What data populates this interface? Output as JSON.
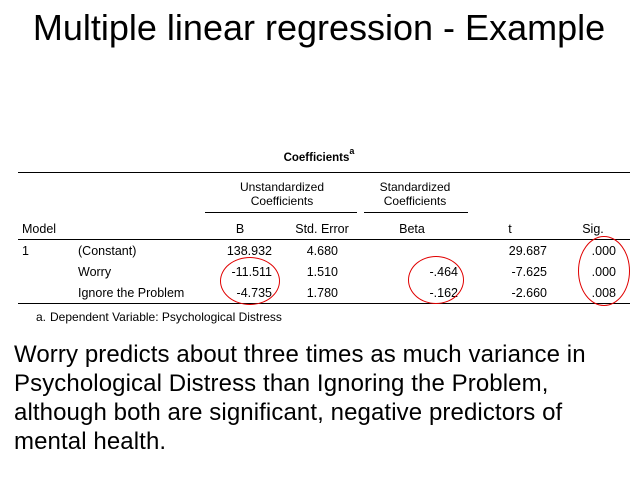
{
  "title": "Multiple linear regression - Example",
  "table": {
    "caption": "Coefficients",
    "caption_superscript": "a",
    "group_headers": {
      "unstandardized": "Unstandardized Coefficients",
      "standardized": "Standardized Coefficients"
    },
    "columns": [
      "Model",
      "",
      "B",
      "Std. Error",
      "Beta",
      "t",
      "Sig."
    ],
    "rows": [
      {
        "model": "1",
        "predictor": "(Constant)",
        "b": "138.932",
        "se": "4.680",
        "beta": "",
        "t": "29.687",
        "sig": ".000"
      },
      {
        "model": "",
        "predictor": "Worry",
        "b": "-11.511",
        "se": "1.510",
        "beta": "-.464",
        "t": "-7.625",
        "sig": ".000"
      },
      {
        "model": "",
        "predictor": "Ignore the Problem",
        "b": "-4.735",
        "se": "1.780",
        "beta": "-.162",
        "t": "-2.660",
        "sig": ".008"
      }
    ],
    "footnote_marker": "a.",
    "footnote": "Dependent Variable: Psychological Distress",
    "highlight_color": "#e00000"
  },
  "body_text": "Worry predicts about three times as much variance in Psychological Distress than Ignoring the Problem, although both are significant, negative predictors of mental health."
}
